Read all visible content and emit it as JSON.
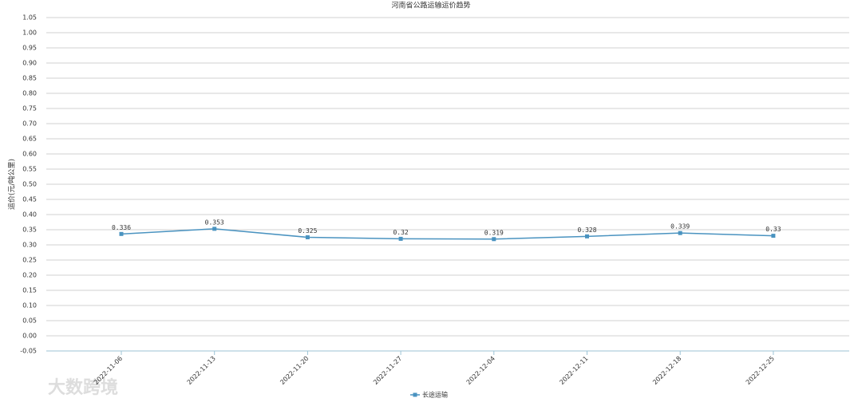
{
  "chart_data": {
    "type": "line",
    "title": "河南省公路运输运价趋势",
    "y_label": "运价(元/吨公里)",
    "categories": [
      "2022-11-06",
      "2022-11-13",
      "2022-11-20",
      "2022-11-27",
      "2022-12-04",
      "2022-12-11",
      "2022-12-18",
      "2022-12-25"
    ],
    "series": [
      {
        "name": "长途运输",
        "color": "#4a93c0",
        "values": [
          0.336,
          0.353,
          0.325,
          0.32,
          0.319,
          0.328,
          0.339,
          0.33
        ]
      }
    ],
    "ylim": [
      -0.05,
      1.05
    ],
    "yticks": [
      -0.05,
      {
        "value": 0,
        "label": "0.00"
      },
      0.05,
      {
        "value": 0.1,
        "label": "0.10"
      },
      0.15,
      {
        "value": 0.2,
        "label": "0.20"
      },
      0.25,
      {
        "value": 0.3,
        "label": "0.30"
      },
      0.35,
      {
        "value": 0.4,
        "label": "0.40"
      },
      0.45,
      {
        "value": 0.5,
        "label": "0.50"
      },
      0.55,
      {
        "value": 0.6,
        "label": "0.60"
      },
      0.65,
      {
        "value": 0.7,
        "label": "0.70"
      },
      0.75,
      {
        "value": 0.8,
        "label": "0.80"
      },
      0.85,
      {
        "value": 0.9,
        "label": "0.90"
      },
      0.95,
      {
        "value": 1,
        "label": "1.00"
      },
      1.05
    ],
    "grid": true,
    "legend": "bottom",
    "watermark": "大数跨境"
  }
}
